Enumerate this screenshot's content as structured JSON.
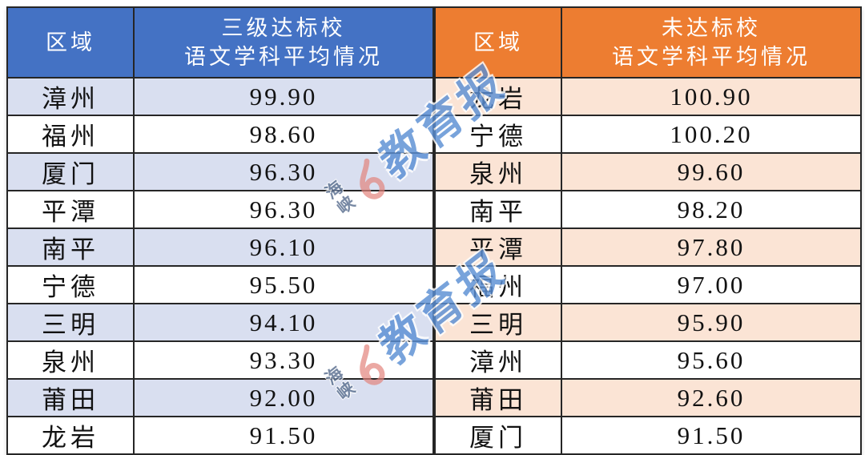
{
  "watermark": {
    "brand_small": "海峡",
    "brand_large": "教育报",
    "large_text_color": "#5b8fd4",
    "small_text_color": "#5a6f8f",
    "swirl_color": "#e2837c"
  },
  "tables": [
    {
      "theme": {
        "header_bg": "#4472c4",
        "header_text": "#ffffff",
        "stripe_bg": "#d9dff0"
      },
      "headers": {
        "region": "区域",
        "metric_line1": "三级达标校",
        "metric_line2": "语文学科平均情况"
      },
      "rows": [
        {
          "region": "漳州",
          "value": "99.90"
        },
        {
          "region": "福州",
          "value": "98.60"
        },
        {
          "region": "厦门",
          "value": "96.30"
        },
        {
          "region": "平潭",
          "value": "96.30"
        },
        {
          "region": "南平",
          "value": "96.10"
        },
        {
          "region": "宁德",
          "value": "95.50"
        },
        {
          "region": "三明",
          "value": "94.10"
        },
        {
          "region": "泉州",
          "value": "93.30"
        },
        {
          "region": "莆田",
          "value": "92.00"
        },
        {
          "region": "龙岩",
          "value": "91.50"
        }
      ]
    },
    {
      "theme": {
        "header_bg": "#ed7d31",
        "header_text": "#ffffff",
        "stripe_bg": "#fbe4d5"
      },
      "headers": {
        "region": "区域",
        "metric_line1": "未达标校",
        "metric_line2": "语文学科平均情况"
      },
      "rows": [
        {
          "region": "龙岩",
          "value": "100.90"
        },
        {
          "region": "宁德",
          "value": "100.20"
        },
        {
          "region": "泉州",
          "value": "99.60"
        },
        {
          "region": "南平",
          "value": "98.20"
        },
        {
          "region": "平潭",
          "value": "97.80"
        },
        {
          "region": "福州",
          "value": "97.00"
        },
        {
          "region": "三明",
          "value": "95.90"
        },
        {
          "region": "漳州",
          "value": "95.60"
        },
        {
          "region": "莆田",
          "value": "92.60"
        },
        {
          "region": "厦门",
          "value": "91.50"
        }
      ]
    }
  ],
  "chart_data": [
    {
      "type": "table",
      "title": "三级达标校语文学科平均情况",
      "columns": [
        "区域",
        "三级达标校语文学科平均情况"
      ],
      "rows": [
        [
          "漳州",
          99.9
        ],
        [
          "福州",
          98.6
        ],
        [
          "厦门",
          96.3
        ],
        [
          "平潭",
          96.3
        ],
        [
          "南平",
          96.1
        ],
        [
          "宁德",
          95.5
        ],
        [
          "三明",
          94.1
        ],
        [
          "泉州",
          93.3
        ],
        [
          "莆田",
          92.0
        ],
        [
          "龙岩",
          91.5
        ]
      ]
    },
    {
      "type": "table",
      "title": "未达标校语文学科平均情况",
      "columns": [
        "区域",
        "未达标校语文学科平均情况"
      ],
      "rows": [
        [
          "龙岩",
          100.9
        ],
        [
          "宁德",
          100.2
        ],
        [
          "泉州",
          99.6
        ],
        [
          "南平",
          98.2
        ],
        [
          "平潭",
          97.8
        ],
        [
          "福州",
          97.0
        ],
        [
          "三明",
          95.9
        ],
        [
          "漳州",
          95.6
        ],
        [
          "莆田",
          92.6
        ],
        [
          "厦门",
          91.5
        ]
      ]
    }
  ]
}
